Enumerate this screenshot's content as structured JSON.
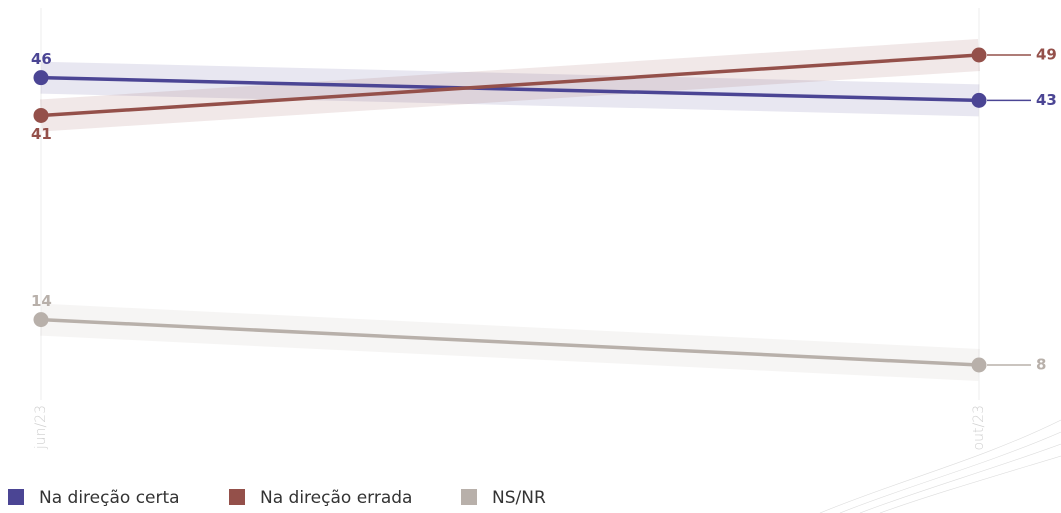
{
  "chart_data": {
    "type": "line",
    "categories": [
      "jun/23",
      "out/23"
    ],
    "series": [
      {
        "name": "Na direção certa",
        "color": "#4b4594",
        "values": [
          46,
          43
        ]
      },
      {
        "name": "Na direção errada",
        "color": "#94504a",
        "values": [
          41,
          49
        ]
      },
      {
        "name": "NS/NR",
        "color": "#b8b0aa",
        "values": [
          14,
          8
        ]
      }
    ]
  }
}
